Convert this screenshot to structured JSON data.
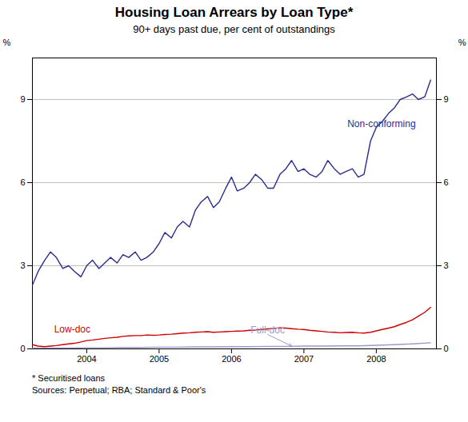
{
  "chart_data": {
    "type": "line",
    "title": "Housing Loan Arrears by Loan Type*",
    "subtitle": "90+ days past due, per cent of outstandings",
    "footnotes": [
      "*  Securitised loans",
      "Sources: Perpetual; RBA; Standard & Poor's"
    ],
    "ylabel": "%",
    "y2label": "%",
    "xlim": [
      2003.25,
      2008.83
    ],
    "xticks": [
      2004,
      2005,
      2006,
      2007,
      2008
    ],
    "ylim": [
      0,
      10.5
    ],
    "yticks": [
      0,
      3,
      6,
      9
    ],
    "y2lim": [
      0,
      10.5
    ],
    "y2ticks": [
      0,
      3,
      6,
      9
    ],
    "grid": true,
    "series": [
      {
        "name": "Non-conforming",
        "color": "#2b2d8e",
        "x": [
          2003.25,
          2003.33,
          2003.42,
          2003.5,
          2003.58,
          2003.67,
          2003.75,
          2003.83,
          2003.92,
          2004.0,
          2004.08,
          2004.17,
          2004.25,
          2004.33,
          2004.42,
          2004.5,
          2004.58,
          2004.67,
          2004.75,
          2004.83,
          2004.92,
          2005.0,
          2005.08,
          2005.17,
          2005.25,
          2005.33,
          2005.42,
          2005.5,
          2005.58,
          2005.67,
          2005.75,
          2005.83,
          2005.92,
          2006.0,
          2006.08,
          2006.17,
          2006.25,
          2006.33,
          2006.42,
          2006.5,
          2006.58,
          2006.67,
          2006.75,
          2006.83,
          2006.92,
          2007.0,
          2007.08,
          2007.17,
          2007.25,
          2007.33,
          2007.42,
          2007.5,
          2007.58,
          2007.67,
          2007.75,
          2007.83,
          2007.92,
          2008.0,
          2008.08,
          2008.17,
          2008.25,
          2008.33,
          2008.42,
          2008.5,
          2008.58,
          2008.67,
          2008.75
        ],
        "values": [
          2.3,
          2.8,
          3.2,
          3.5,
          3.3,
          2.9,
          3.0,
          2.8,
          2.6,
          3.0,
          3.2,
          2.9,
          3.1,
          3.3,
          3.1,
          3.4,
          3.3,
          3.5,
          3.2,
          3.3,
          3.5,
          3.8,
          4.2,
          4.0,
          4.4,
          4.6,
          4.4,
          5.0,
          5.3,
          5.5,
          5.1,
          5.3,
          5.8,
          6.2,
          5.7,
          5.8,
          6.0,
          6.3,
          6.1,
          5.8,
          5.8,
          6.3,
          6.5,
          6.8,
          6.4,
          6.5,
          6.3,
          6.2,
          6.4,
          6.8,
          6.5,
          6.3,
          6.4,
          6.5,
          6.2,
          6.3,
          7.5,
          8.0,
          8.2,
          8.5,
          8.7,
          9.0,
          9.1,
          9.2,
          9.0,
          9.1,
          9.7
        ]
      },
      {
        "name": "Low-doc",
        "color": "#cc0000",
        "x": [
          2003.25,
          2003.33,
          2003.42,
          2003.5,
          2003.58,
          2003.67,
          2003.75,
          2003.83,
          2003.92,
          2004.0,
          2004.08,
          2004.17,
          2004.25,
          2004.33,
          2004.42,
          2004.5,
          2004.58,
          2004.67,
          2004.75,
          2004.83,
          2004.92,
          2005.0,
          2005.08,
          2005.17,
          2005.25,
          2005.33,
          2005.42,
          2005.5,
          2005.58,
          2005.67,
          2005.75,
          2005.83,
          2005.92,
          2006.0,
          2006.08,
          2006.17,
          2006.25,
          2006.33,
          2006.42,
          2006.5,
          2006.58,
          2006.67,
          2006.75,
          2006.83,
          2006.92,
          2007.0,
          2007.08,
          2007.17,
          2007.25,
          2007.33,
          2007.42,
          2007.5,
          2007.58,
          2007.67,
          2007.75,
          2007.83,
          2007.92,
          2008.0,
          2008.08,
          2008.17,
          2008.25,
          2008.33,
          2008.42,
          2008.5,
          2008.58,
          2008.67,
          2008.75
        ],
        "values": [
          0.15,
          0.1,
          0.08,
          0.1,
          0.12,
          0.15,
          0.18,
          0.2,
          0.25,
          0.3,
          0.32,
          0.35,
          0.38,
          0.4,
          0.42,
          0.45,
          0.47,
          0.48,
          0.48,
          0.5,
          0.49,
          0.5,
          0.52,
          0.53,
          0.55,
          0.57,
          0.58,
          0.6,
          0.61,
          0.62,
          0.6,
          0.61,
          0.62,
          0.63,
          0.64,
          0.65,
          0.67,
          0.68,
          0.7,
          0.72,
          0.74,
          0.76,
          0.75,
          0.73,
          0.71,
          0.7,
          0.67,
          0.65,
          0.63,
          0.61,
          0.6,
          0.58,
          0.59,
          0.6,
          0.58,
          0.57,
          0.6,
          0.65,
          0.7,
          0.75,
          0.8,
          0.88,
          0.96,
          1.05,
          1.18,
          1.32,
          1.5
        ]
      },
      {
        "name": "Full-doc",
        "color": "#9999cc",
        "x": [
          2003.25,
          2003.5,
          2003.75,
          2004.0,
          2004.25,
          2004.5,
          2004.75,
          2005.0,
          2005.25,
          2005.5,
          2005.75,
          2006.0,
          2006.25,
          2006.5,
          2006.75,
          2007.0,
          2007.25,
          2007.5,
          2007.75,
          2008.0,
          2008.25,
          2008.5,
          2008.75
        ],
        "values": [
          0.03,
          0.03,
          0.03,
          0.04,
          0.04,
          0.05,
          0.05,
          0.06,
          0.06,
          0.07,
          0.07,
          0.08,
          0.08,
          0.09,
          0.09,
          0.1,
          0.1,
          0.11,
          0.11,
          0.13,
          0.15,
          0.18,
          0.22
        ]
      }
    ],
    "annotations": [
      {
        "text": "Non-conforming",
        "x": 2007.6,
        "y": 8.0,
        "color": "#2b2d8e"
      },
      {
        "text": "Low-doc",
        "x": 2003.55,
        "y": 0.58,
        "color": "#cc0000"
      },
      {
        "text": "Full-doc",
        "x": 2006.5,
        "y": 0.52,
        "color": "#9999cc",
        "arrow_to": [
          2006.83,
          0.1
        ]
      }
    ]
  }
}
